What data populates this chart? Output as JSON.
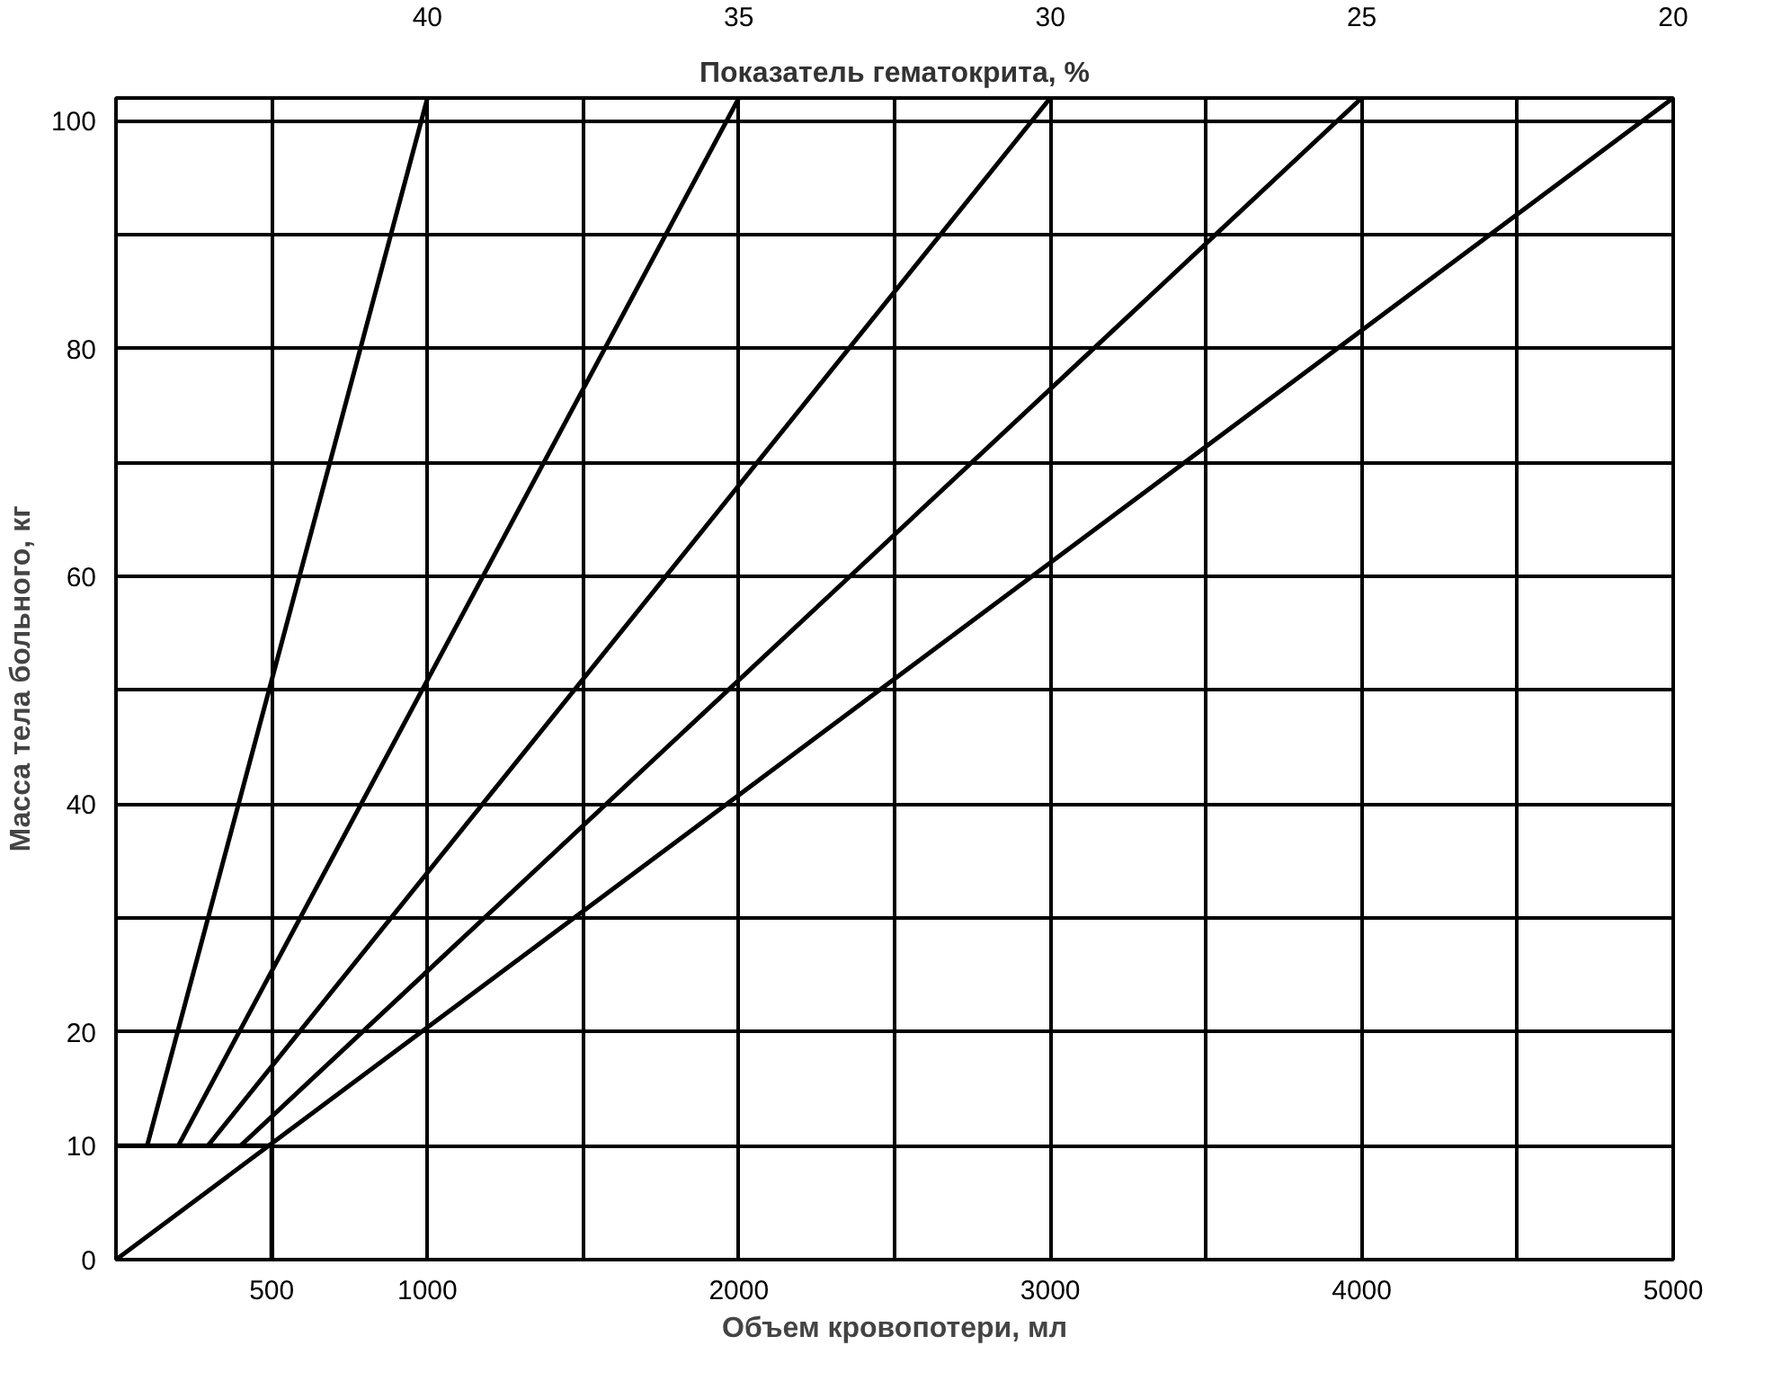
{
  "chart_data": {
    "type": "line",
    "xlabel": "Объем кровопотери, мл",
    "ylabel": "Масса тела больного, кг",
    "annotations": [
      "Показатель гематокрита, %"
    ],
    "xlim": [
      0,
      5000
    ],
    "ylim": [
      0,
      102
    ],
    "xticks": [
      500,
      1000,
      {
        "value": 1500,
        "label": null
      },
      2000,
      {
        "value": 2500,
        "label": null
      },
      3000,
      {
        "value": 3500,
        "label": null
      },
      4000,
      {
        "value": 4500,
        "label": null
      },
      5000
    ],
    "yticks": [
      0,
      10,
      20,
      {
        "value": 30,
        "label": null
      },
      40,
      {
        "value": 50,
        "label": null
      },
      60,
      {
        "value": 70,
        "label": null
      },
      80,
      {
        "value": 90,
        "label": null
      },
      100
    ],
    "grid": true,
    "marker": "none",
    "line_style": "solid",
    "series": [
      {
        "name": "40",
        "color": "#000000",
        "x": [
          100,
          1000
        ],
        "values": [
          10,
          102
        ]
      },
      {
        "name": "35",
        "color": "#000000",
        "x": [
          200,
          2000
        ],
        "values": [
          10,
          102
        ]
      },
      {
        "name": "30",
        "color": "#000000",
        "x": [
          295,
          3000
        ],
        "values": [
          10,
          102
        ]
      },
      {
        "name": "25",
        "color": "#000000",
        "x": [
          400,
          4000
        ],
        "values": [
          10,
          102
        ]
      },
      {
        "name": "20",
        "color": "#000000",
        "x": [
          0,
          5000
        ],
        "values": [
          0,
          102
        ]
      },
      {
        "color": "#000000",
        "x": [
          0,
          500,
          500
        ],
        "values": [
          10,
          10,
          0
        ]
      }
    ]
  }
}
